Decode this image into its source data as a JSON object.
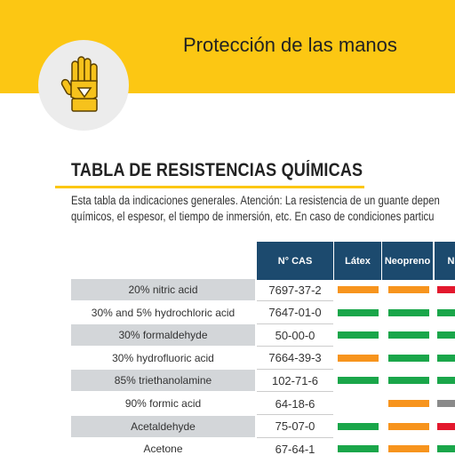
{
  "header": {
    "title": "Protección de las manos"
  },
  "heading": "TABLA DE RESISTENCIAS QUÍMICAS",
  "paragraph": [
    "Esta tabla da indicaciones generales. Atención: La resistencia de un guante depen",
    "químicos, el espesor, el tiempo de inmersión, etc. En caso de condiciones particu"
  ],
  "table": {
    "columns": [
      "N° CAS",
      "Látex",
      "Neopreno",
      "Ni"
    ],
    "rating_colors": {
      "green": "#1aa64a",
      "orange": "#f7941d",
      "red": "#e3182d",
      "gray": "#8a8a8a"
    },
    "rows": [
      [
        "20% nitric acid",
        "7697-37-2",
        "orange",
        "orange",
        "red"
      ],
      [
        "30% and 5% hydrochloric acid",
        "7647-01-0",
        "green",
        "green",
        "green"
      ],
      [
        "30% formaldehyde",
        "50-00-0",
        "green",
        "green",
        "green"
      ],
      [
        "30% hydrofluoric acid",
        "7664-39-3",
        "orange",
        "green",
        "green"
      ],
      [
        "85% triethanolamine",
        "102-71-6",
        "green",
        "green",
        "green"
      ],
      [
        "90% formic acid",
        "64-18-6",
        null,
        "orange",
        "gray"
      ],
      [
        "Acetaldehyde",
        "75-07-0",
        "green",
        "orange",
        "red"
      ],
      [
        "Acetone",
        "67-64-1",
        "green",
        "orange",
        "green"
      ]
    ]
  }
}
